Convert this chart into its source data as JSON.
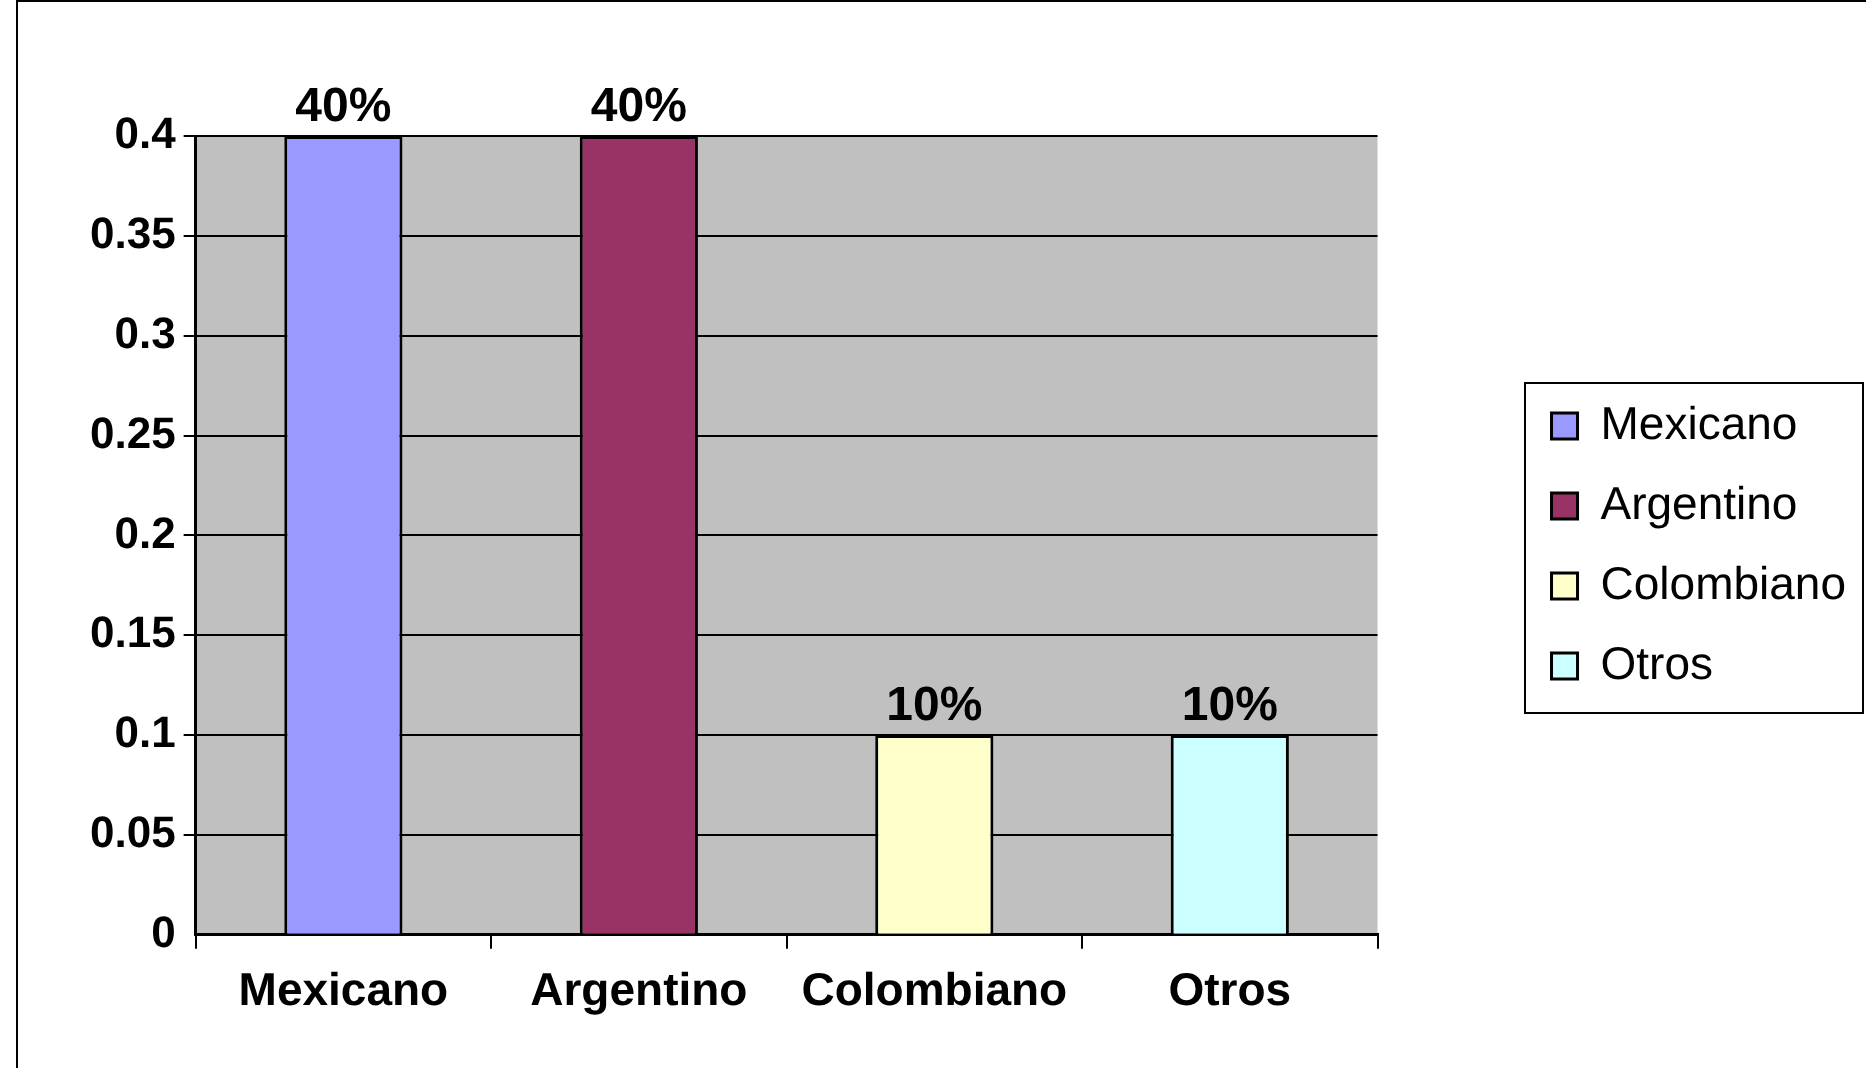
{
  "chart_data": {
    "type": "bar",
    "categories": [
      "Mexicano",
      "Argentino",
      "Colombiano",
      "Otros"
    ],
    "series": [
      {
        "name": "Mexicano",
        "color": "#9999ff",
        "values": [
          0.4,
          null,
          null,
          null
        ],
        "value_labels": [
          "40%",
          null,
          null,
          null
        ]
      },
      {
        "name": "Argentino",
        "color": "#993366",
        "values": [
          null,
          0.4,
          null,
          null
        ],
        "value_labels": [
          null,
          "40%",
          null,
          null
        ]
      },
      {
        "name": "Colombiano",
        "color": "#ffffcc",
        "values": [
          null,
          null,
          0.1,
          null
        ],
        "value_labels": [
          null,
          null,
          "10%",
          null
        ]
      },
      {
        "name": "Otros",
        "color": "#ccffff",
        "values": [
          null,
          null,
          null,
          0.1
        ],
        "value_labels": [
          null,
          null,
          null,
          "10%"
        ]
      }
    ],
    "ylim": [
      0,
      0.4
    ],
    "yticks": [
      0,
      0.05,
      0.1,
      0.15,
      0.2,
      0.25,
      0.3,
      0.35,
      0.4
    ],
    "grid": "y",
    "legend": "right"
  }
}
